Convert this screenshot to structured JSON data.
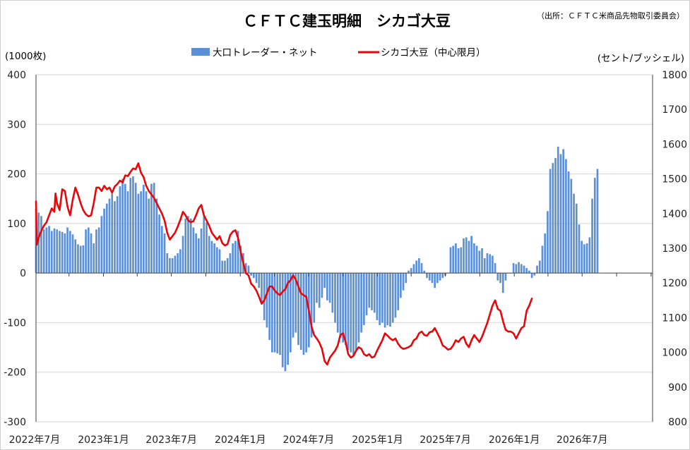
{
  "chart_data": {
    "type": "bar+line",
    "title": "ＣＦＴＣ建玉明細　シカゴ大豆",
    "source": "（出所：ＣＦＴＣ米商品先物取引委員会）",
    "left_unit": "(1000枚)",
    "right_unit": "(セント/ブッシェル)",
    "legend": [
      "大口トレーダー・ネット",
      "シカゴ大豆（中心限月）"
    ],
    "colors": {
      "bar": "#5b8fd6",
      "line": "#e8060a",
      "grid": "#d4d4d4"
    },
    "left_axis": {
      "min": -300,
      "max": 400,
      "ticks": [
        "400",
        "300",
        "200",
        "100",
        "0",
        "-100",
        "-200",
        "-300"
      ]
    },
    "right_axis": {
      "min": 800,
      "max": 1800,
      "ticks": [
        "1800",
        "1700",
        "1600",
        "1500",
        "1400",
        "1300",
        "1200",
        "1100",
        "1000",
        "900",
        "800"
      ]
    },
    "x_range": [
      "2022-07-05",
      "2027-01-05"
    ],
    "x_tick_labels": [
      "2022年7月",
      "2023年1月",
      "2023年7月",
      "2024年1月",
      "2024年7月",
      "2025年1月",
      "2025年7月",
      "2026年1月",
      "2026年7月"
    ],
    "bar_series": {
      "name": "大口トレーダー・ネット",
      "start_date": "2022-07-05",
      "interval_days": 7,
      "values": [
        130,
        122,
        115,
        88,
        92,
        95,
        85,
        90,
        88,
        85,
        83,
        80,
        92,
        85,
        78,
        68,
        58,
        55,
        56,
        88,
        92,
        80,
        60,
        88,
        92,
        115,
        130,
        140,
        150,
        160,
        145,
        155,
        175,
        190,
        180,
        165,
        192,
        195,
        182,
        160,
        165,
        178,
        165,
        150,
        180,
        182,
        150,
        118,
        95,
        80,
        40,
        30,
        30,
        35,
        40,
        48,
        75,
        110,
        115,
        110,
        92,
        80,
        70,
        90,
        115,
        102,
        75,
        65,
        60,
        52,
        48,
        25,
        25,
        30,
        40,
        60,
        65,
        85,
        55,
        40,
        20,
        15,
        -5,
        -10,
        -20,
        -30,
        -60,
        -95,
        -110,
        -135,
        -160,
        -160,
        -162,
        -165,
        -190,
        -198,
        -185,
        -160,
        -130,
        -120,
        -145,
        -155,
        -165,
        -160,
        -150,
        -130,
        -100,
        -60,
        -70,
        -50,
        -30,
        -55,
        -60,
        -80,
        -100,
        -120,
        -130,
        -140,
        -145,
        -155,
        -160,
        -165,
        -155,
        -140,
        -120,
        -105,
        -85,
        -70,
        -75,
        -80,
        -95,
        -105,
        -100,
        -110,
        -105,
        -108,
        -100,
        -90,
        -75,
        -50,
        -35,
        -20,
        5,
        10,
        18,
        25,
        30,
        20,
        5,
        -10,
        -15,
        -20,
        -30,
        -20,
        -15,
        -10,
        -5,
        0,
        52,
        55,
        60,
        50,
        52,
        70,
        72,
        65,
        75,
        60,
        55,
        45,
        50,
        30,
        40,
        38,
        35,
        20,
        -15,
        -20,
        -40,
        -15,
        0,
        0,
        20,
        18,
        22,
        18,
        15,
        10,
        5,
        -10,
        -5,
        15,
        25,
        55,
        80,
        125,
        210,
        222,
        232,
        255,
        240,
        250,
        230,
        205,
        190,
        160,
        140,
        98,
        65,
        58,
        60,
        72,
        150,
        192,
        210
      ]
    },
    "line_series": {
      "name": "シカゴ大豆（中心限月）",
      "points": [
        [
          "2022-07-05",
          1435
        ],
        [
          "2022-07-07",
          1310
        ],
        [
          "2022-07-12",
          1330
        ],
        [
          "2022-07-19",
          1350
        ],
        [
          "2022-07-26",
          1365
        ],
        [
          "2022-08-02",
          1375
        ],
        [
          "2022-08-09",
          1395
        ],
        [
          "2022-08-16",
          1415
        ],
        [
          "2022-08-23",
          1405
        ],
        [
          "2022-08-26",
          1458
        ],
        [
          "2022-08-30",
          1430
        ],
        [
          "2022-09-06",
          1410
        ],
        [
          "2022-09-13",
          1470
        ],
        [
          "2022-09-20",
          1465
        ],
        [
          "2022-09-27",
          1420
        ],
        [
          "2022-10-04",
          1395
        ],
        [
          "2022-10-11",
          1440
        ],
        [
          "2022-10-18",
          1475
        ],
        [
          "2022-10-25",
          1455
        ],
        [
          "2022-11-01",
          1430
        ],
        [
          "2022-11-08",
          1410
        ],
        [
          "2022-11-15",
          1398
        ],
        [
          "2022-11-22",
          1392
        ],
        [
          "2022-11-29",
          1395
        ],
        [
          "2022-12-06",
          1430
        ],
        [
          "2022-12-13",
          1475
        ],
        [
          "2022-12-20",
          1475
        ],
        [
          "2022-12-27",
          1465
        ],
        [
          "2023-01-03",
          1480
        ],
        [
          "2023-01-10",
          1470
        ],
        [
          "2023-01-17",
          1475
        ],
        [
          "2023-01-24",
          1460
        ],
        [
          "2023-01-31",
          1478
        ],
        [
          "2023-02-07",
          1485
        ],
        [
          "2023-02-14",
          1495
        ],
        [
          "2023-02-21",
          1490
        ],
        [
          "2023-02-28",
          1510
        ],
        [
          "2023-03-07",
          1508
        ],
        [
          "2023-03-14",
          1520
        ],
        [
          "2023-03-21",
          1530
        ],
        [
          "2023-03-28",
          1528
        ],
        [
          "2023-04-04",
          1545
        ],
        [
          "2023-04-11",
          1518
        ],
        [
          "2023-04-18",
          1505
        ],
        [
          "2023-04-25",
          1480
        ],
        [
          "2023-05-02",
          1465
        ],
        [
          "2023-05-09",
          1455
        ],
        [
          "2023-05-16",
          1445
        ],
        [
          "2023-05-23",
          1430
        ],
        [
          "2023-05-30",
          1415
        ],
        [
          "2023-06-06",
          1400
        ],
        [
          "2023-06-13",
          1380
        ],
        [
          "2023-06-20",
          1345
        ],
        [
          "2023-06-27",
          1325
        ],
        [
          "2023-07-04",
          1335
        ],
        [
          "2023-07-11",
          1345
        ],
        [
          "2023-07-18",
          1362
        ],
        [
          "2023-07-25",
          1382
        ],
        [
          "2023-08-01",
          1405
        ],
        [
          "2023-08-08",
          1395
        ],
        [
          "2023-08-15",
          1380
        ],
        [
          "2023-08-22",
          1375
        ],
        [
          "2023-08-29",
          1378
        ],
        [
          "2023-09-05",
          1395
        ],
        [
          "2023-09-12",
          1415
        ],
        [
          "2023-09-19",
          1425
        ],
        [
          "2023-09-26",
          1395
        ],
        [
          "2023-10-03",
          1380
        ],
        [
          "2023-10-10",
          1365
        ],
        [
          "2023-10-17",
          1345
        ],
        [
          "2023-10-24",
          1335
        ],
        [
          "2023-10-31",
          1325
        ],
        [
          "2023-11-07",
          1335
        ],
        [
          "2023-11-14",
          1315
        ],
        [
          "2023-11-21",
          1308
        ],
        [
          "2023-11-28",
          1312
        ],
        [
          "2023-12-05",
          1338
        ],
        [
          "2023-12-12",
          1348
        ],
        [
          "2023-12-19",
          1352
        ],
        [
          "2023-12-26",
          1330
        ],
        [
          "2024-01-02",
          1290
        ],
        [
          "2024-01-09",
          1258
        ],
        [
          "2024-01-16",
          1228
        ],
        [
          "2024-01-23",
          1222
        ],
        [
          "2024-01-30",
          1198
        ],
        [
          "2024-02-06",
          1190
        ],
        [
          "2024-02-13",
          1178
        ],
        [
          "2024-02-20",
          1160
        ],
        [
          "2024-02-27",
          1140
        ],
        [
          "2024-03-05",
          1150
        ],
        [
          "2024-03-12",
          1170
        ],
        [
          "2024-03-19",
          1190
        ],
        [
          "2024-03-26",
          1190
        ],
        [
          "2024-04-02",
          1178
        ],
        [
          "2024-04-09",
          1170
        ],
        [
          "2024-04-16",
          1165
        ],
        [
          "2024-04-23",
          1175
        ],
        [
          "2024-04-30",
          1182
        ],
        [
          "2024-05-07",
          1200
        ],
        [
          "2024-05-14",
          1208
        ],
        [
          "2024-05-21",
          1222
        ],
        [
          "2024-05-28",
          1210
        ],
        [
          "2024-06-04",
          1190
        ],
        [
          "2024-06-11",
          1170
        ],
        [
          "2024-06-18",
          1165
        ],
        [
          "2024-06-25",
          1160
        ],
        [
          "2024-07-02",
          1120
        ],
        [
          "2024-07-09",
          1075
        ],
        [
          "2024-07-16",
          1050
        ],
        [
          "2024-07-23",
          1040
        ],
        [
          "2024-07-30",
          1028
        ],
        [
          "2024-08-06",
          1010
        ],
        [
          "2024-08-13",
          975
        ],
        [
          "2024-08-20",
          965
        ],
        [
          "2024-08-27",
          985
        ],
        [
          "2024-09-03",
          995
        ],
        [
          "2024-09-10",
          1005
        ],
        [
          "2024-09-17",
          1020
        ],
        [
          "2024-09-24",
          1050
        ],
        [
          "2024-10-01",
          1055
        ],
        [
          "2024-10-08",
          1030
        ],
        [
          "2024-10-15",
          995
        ],
        [
          "2024-10-22",
          985
        ],
        [
          "2024-10-29",
          990
        ],
        [
          "2024-11-05",
          1005
        ],
        [
          "2024-11-12",
          1015
        ],
        [
          "2024-11-19",
          1010
        ],
        [
          "2024-11-26",
          995
        ],
        [
          "2024-12-03",
          990
        ],
        [
          "2024-12-10",
          995
        ],
        [
          "2024-12-17",
          985
        ],
        [
          "2024-12-24",
          988
        ],
        [
          "2024-12-31",
          1005
        ],
        [
          "2025-01-07",
          1020
        ],
        [
          "2025-01-14",
          1035
        ],
        [
          "2025-01-21",
          1055
        ],
        [
          "2025-01-28",
          1048
        ],
        [
          "2025-02-04",
          1040
        ],
        [
          "2025-02-11",
          1035
        ],
        [
          "2025-02-18",
          1040
        ],
        [
          "2025-02-25",
          1025
        ],
        [
          "2025-03-04",
          1015
        ],
        [
          "2025-03-11",
          1010
        ],
        [
          "2025-03-18",
          1012
        ],
        [
          "2025-03-25",
          1015
        ],
        [
          "2025-04-01",
          1020
        ],
        [
          "2025-04-08",
          1035
        ],
        [
          "2025-04-15",
          1040
        ],
        [
          "2025-04-22",
          1055
        ],
        [
          "2025-04-29",
          1060
        ],
        [
          "2025-05-06",
          1050
        ],
        [
          "2025-05-13",
          1048
        ],
        [
          "2025-05-20",
          1058
        ],
        [
          "2025-05-27",
          1060
        ],
        [
          "2025-06-03",
          1070
        ],
        [
          "2025-06-10",
          1055
        ],
        [
          "2025-06-17",
          1040
        ],
        [
          "2025-06-24",
          1020
        ],
        [
          "2025-07-01",
          1015
        ],
        [
          "2025-07-08",
          1008
        ],
        [
          "2025-07-15",
          1010
        ],
        [
          "2025-07-22",
          1020
        ],
        [
          "2025-07-29",
          1035
        ],
        [
          "2025-08-05",
          1030
        ],
        [
          "2025-08-12",
          1040
        ],
        [
          "2025-08-19",
          1045
        ],
        [
          "2025-08-26",
          1025
        ],
        [
          "2025-09-02",
          1015
        ],
        [
          "2025-09-09",
          1035
        ],
        [
          "2025-09-16",
          1050
        ],
        [
          "2025-09-23",
          1040
        ],
        [
          "2025-09-30",
          1030
        ],
        [
          "2025-10-07",
          1045
        ],
        [
          "2025-10-14",
          1065
        ],
        [
          "2025-10-21",
          1085
        ],
        [
          "2025-10-28",
          1110
        ],
        [
          "2025-11-04",
          1135
        ],
        [
          "2025-11-11",
          1150
        ],
        [
          "2025-11-18",
          1125
        ],
        [
          "2025-11-25",
          1120
        ],
        [
          "2025-12-02",
          1090
        ],
        [
          "2025-12-09",
          1065
        ],
        [
          "2025-12-16",
          1060
        ],
        [
          "2025-12-23",
          1060
        ],
        [
          "2025-12-30",
          1055
        ],
        [
          "2026-01-06",
          1040
        ],
        [
          "2026-01-13",
          1055
        ],
        [
          "2026-01-20",
          1070
        ],
        [
          "2026-01-27",
          1075
        ],
        [
          "2026-02-03",
          1120
        ],
        [
          "2026-02-10",
          1135
        ],
        [
          "2026-02-17",
          1155
        ]
      ]
    }
  }
}
